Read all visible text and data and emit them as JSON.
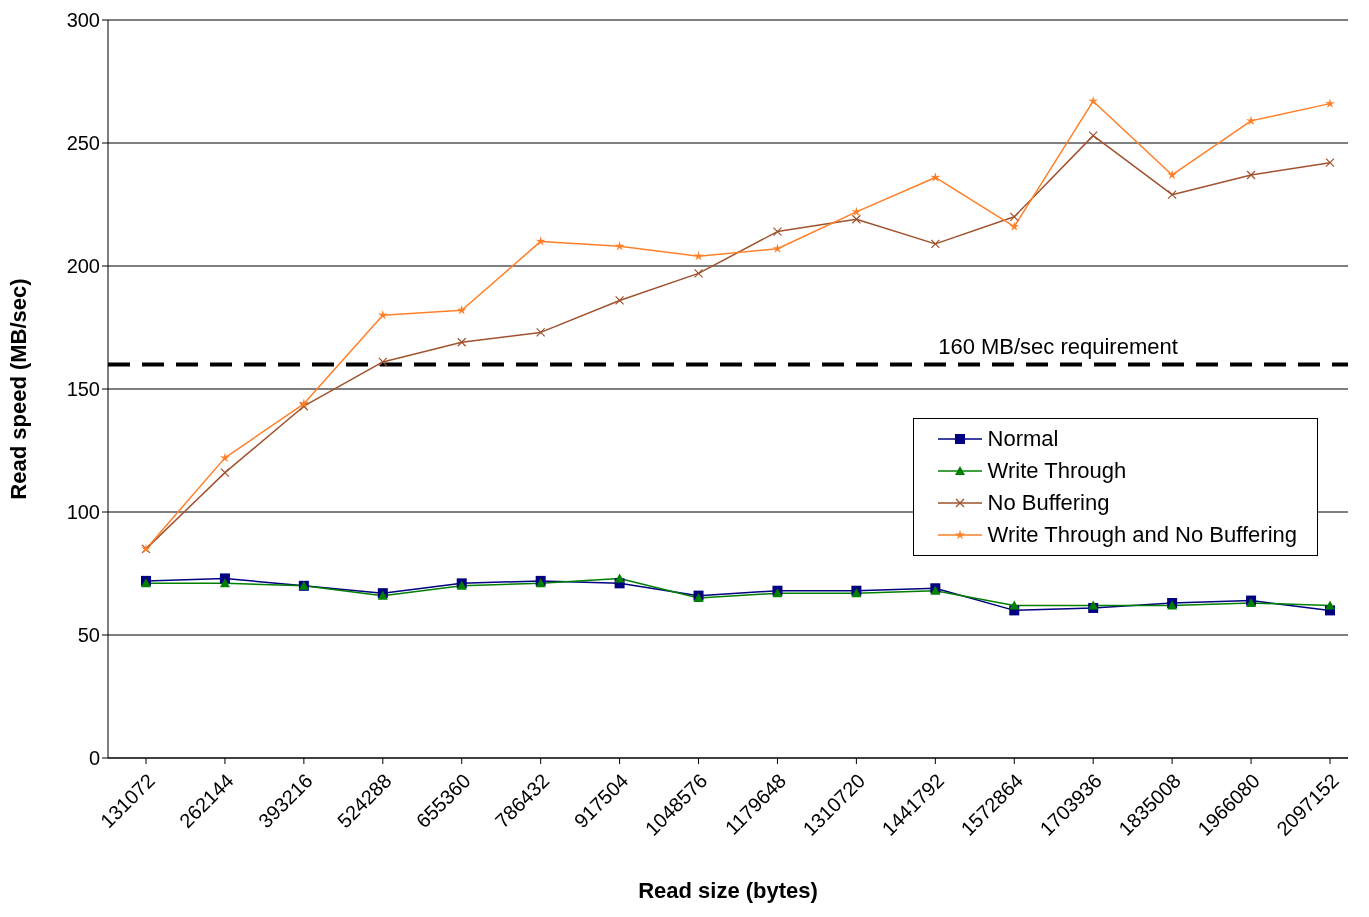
{
  "chart_data": {
    "type": "line",
    "xlabel": "Read size (bytes)",
    "ylabel": "Read speed (MB/sec)",
    "categories": [
      "131072",
      "262144",
      "393216",
      "524288",
      "655360",
      "786432",
      "917504",
      "1048576",
      "1179648",
      "1310720",
      "1441792",
      "1572864",
      "1703936",
      "1835008",
      "1966080",
      "2097152"
    ],
    "series": [
      {
        "name": "Normal",
        "color": "#000080",
        "marker": "square",
        "values": [
          72,
          73,
          70,
          67,
          71,
          72,
          71,
          66,
          68,
          68,
          69,
          60,
          61,
          63,
          64,
          60
        ]
      },
      {
        "name": "Write Through",
        "color": "#008000",
        "marker": "triangle",
        "values": [
          71,
          71,
          70,
          66,
          70,
          71,
          73,
          65,
          67,
          67,
          68,
          62,
          62,
          62,
          63,
          62
        ]
      },
      {
        "name": "No Buffering",
        "color": "#a0522d",
        "marker": "cross",
        "values": [
          85,
          116,
          143,
          161,
          169,
          173,
          186,
          197,
          214,
          219,
          209,
          220,
          253,
          229,
          237,
          242
        ]
      },
      {
        "name": "Write Through and No Buffering",
        "color": "#ff7f27",
        "marker": "star",
        "values": [
          85,
          122,
          144,
          180,
          182,
          210,
          208,
          204,
          207,
          222,
          236,
          216,
          267,
          237,
          259,
          266
        ]
      }
    ],
    "ylim": [
      0,
      300
    ],
    "yticks": [
      0,
      50,
      100,
      150,
      200,
      250,
      300
    ],
    "grid": "y",
    "legend": "right",
    "ref_lines": [
      {
        "axis": "y",
        "value": 160,
        "label": "160 MB/sec requirement",
        "color": "#000000",
        "line_style": "dashed"
      }
    ]
  }
}
